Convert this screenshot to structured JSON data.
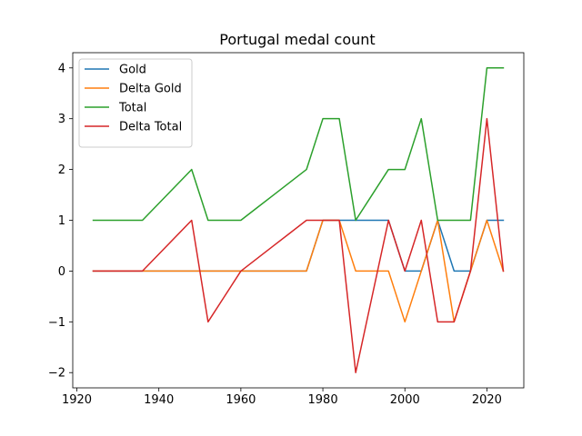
{
  "chart_data": {
    "type": "line",
    "title": "Portugal medal count",
    "xlabel": "",
    "ylabel": "",
    "xlim": [
      1919,
      2029
    ],
    "ylim": [
      -2.3,
      4.3
    ],
    "x_ticks": [
      1920,
      1940,
      1960,
      1980,
      2000,
      2020
    ],
    "y_ticks": [
      -2,
      -1,
      0,
      1,
      2,
      3,
      4
    ],
    "y_tick_labels": [
      "−2",
      "−1",
      "0",
      "1",
      "2",
      "3",
      "4"
    ],
    "grid": false,
    "legend_position": "upper-left",
    "x": [
      1924,
      1928,
      1932,
      1936,
      1948,
      1952,
      1956,
      1960,
      1964,
      1968,
      1972,
      1976,
      1980,
      1984,
      1988,
      1992,
      1996,
      2000,
      2004,
      2008,
      2012,
      2016,
      2020,
      2024
    ],
    "series": [
      {
        "name": "Gold",
        "color": "#1f77b4",
        "values": [
          0,
          0,
          0,
          0,
          0,
          0,
          0,
          0,
          0,
          0,
          0,
          0,
          1,
          1,
          1,
          1,
          1,
          0,
          0,
          1,
          0,
          0,
          1,
          1
        ]
      },
      {
        "name": "Delta Gold",
        "color": "#ff7f0e",
        "values": [
          0,
          0,
          0,
          0,
          0,
          0,
          0,
          0,
          0,
          0,
          0,
          0,
          1,
          1,
          0,
          0,
          0,
          -1,
          0,
          1,
          -1,
          0,
          1,
          0
        ]
      },
      {
        "name": "Total",
        "color": "#2ca02c",
        "values": [
          1,
          1,
          1,
          1,
          2,
          1,
          1,
          1,
          1.25,
          1.5,
          1.75,
          2,
          3,
          3,
          1,
          1.5,
          2,
          2,
          3,
          1,
          1,
          1,
          4,
          4
        ]
      },
      {
        "name": "Delta Total",
        "color": "#d62728",
        "values": [
          0,
          0,
          0,
          0,
          1,
          -1,
          -0.5,
          0,
          0.25,
          0.5,
          0.75,
          1,
          1,
          1,
          -2,
          -0.5,
          1,
          0,
          1,
          -1,
          -1,
          0,
          3,
          0
        ]
      }
    ]
  }
}
